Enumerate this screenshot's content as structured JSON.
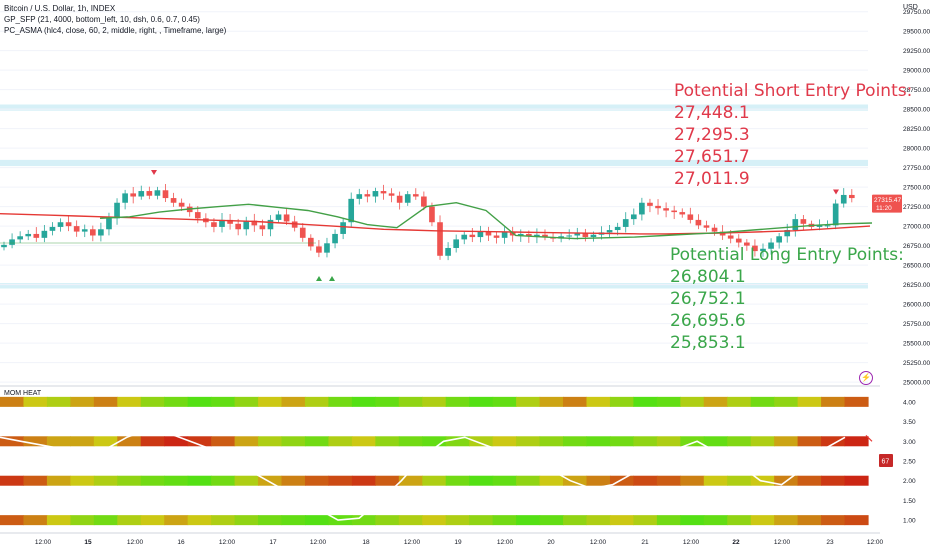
{
  "header": {
    "line1": "Bitcoin / U.S. Dollar, 1h, INDEX",
    "line2": "GP_SFP (21, 4000, bottom_left, 10, dsh, 0.6, 0.7, 0.45)",
    "line3": "PC_ASMA (hlc4, close, 60, 2, middle, right, , Timeframe, large)"
  },
  "axis_currency": "USD",
  "annotations": {
    "short_title": "Potential Short Entry Points:",
    "short_values": [
      "27,448.1",
      "27,295.3",
      "27,651.7",
      "27,011.9"
    ],
    "long_title": "Potential Long Entry Points:",
    "long_values": [
      "26,804.1",
      "26,752.1",
      "26,695.6",
      "25,853.1"
    ]
  },
  "price_tags": {
    "last": "27315.47",
    "countdown": "11:20"
  },
  "momentum": {
    "label": "MOM HEAT",
    "badge": "67"
  },
  "icons": [
    "bolt-icon",
    "triangle-down-icon",
    "triangle-up-icon"
  ],
  "colors": {
    "up": "#26a69a",
    "down": "#ef5350",
    "asma": "#e53935",
    "sfp": "#43a047",
    "zone": "#d6f0f7"
  },
  "chart_data": [
    {
      "type": "candlestick",
      "title": "Bitcoin / U.S. Dollar, 1h, INDEX",
      "y_ticks": [
        29750,
        29500,
        29250,
        29000,
        28750,
        28500,
        28250,
        28000,
        27750,
        27500,
        27250,
        27000,
        26750,
        26500,
        26250,
        26000,
        25750,
        25500,
        25250,
        25000
      ],
      "x_tick_labels": [
        "12:00",
        "15",
        "12:00",
        "16",
        "12:00",
        "17",
        "12:00",
        "18",
        "12:00",
        "19",
        "12:00",
        "20",
        "12:00",
        "21",
        "12:00",
        "22",
        "12:00",
        "23",
        "12:00"
      ],
      "x_bold": [
        "15",
        "22"
      ],
      "ylim": [
        24950,
        29900
      ],
      "closes": [
        26760,
        26830,
        26870,
        26900,
        26850,
        26940,
        26990,
        27050,
        27000,
        26930,
        26960,
        26880,
        26960,
        27100,
        27300,
        27420,
        27380,
        27450,
        27390,
        27460,
        27360,
        27300,
        27250,
        27180,
        27100,
        27050,
        26990,
        27080,
        27030,
        26960,
        27070,
        27010,
        26960,
        27080,
        27150,
        27060,
        26980,
        26850,
        26740,
        26660,
        26780,
        26900,
        27050,
        27350,
        27410,
        27380,
        27450,
        27420,
        27390,
        27300,
        27410,
        27380,
        27250,
        27050,
        26620,
        26720,
        26830,
        26890,
        26860,
        26930,
        26880,
        26850,
        26920,
        26880,
        26900,
        26870,
        26890,
        26860,
        26840,
        26870,
        26880,
        26910,
        26860,
        26890,
        26920,
        26950,
        26990,
        27090,
        27150,
        27300,
        27260,
        27230,
        27200,
        27180,
        27150,
        27080,
        27010,
        26980,
        26930,
        26880,
        26840,
        26790,
        26750,
        26680,
        26710,
        26790,
        26870,
        26950,
        27090,
        27030,
        26990,
        27010,
        27010,
        27290,
        27400,
        27360
      ],
      "asma": [
        27160,
        27150,
        27140,
        27130,
        27120,
        27110,
        27100,
        27090,
        27080,
        27070,
        27060,
        27040,
        27020,
        27000,
        26980,
        26960,
        26950,
        26940,
        26935,
        26930,
        26925,
        26920,
        26915,
        26910,
        26905,
        26900,
        26900,
        26905,
        26910,
        26920,
        26930,
        26940,
        26960,
        26980,
        27000
      ],
      "sfp_line": [
        27100,
        27120,
        27180,
        27220,
        27250,
        27280,
        27240,
        27200,
        27120,
        27020,
        26980,
        27250,
        27300,
        27200,
        26880,
        26860,
        26840,
        26850,
        26860,
        26880,
        26900,
        26920,
        26950,
        26980,
        27010,
        27030,
        27040
      ],
      "resistance_zones": [
        [
          28480,
          28560
        ],
        [
          27770,
          27850
        ]
      ],
      "support_zones": [
        [
          26200,
          26270
        ]
      ],
      "markers": {
        "down": [
          "top-left",
          "top-right"
        ],
        "up": [
          "bottom-left-pair"
        ]
      }
    },
    {
      "type": "heatmap",
      "title": "MOM HEAT",
      "y_ticks": [
        4.0,
        3.5,
        3.0,
        2.5,
        2.0,
        1.5,
        1.0
      ],
      "rows": [
        {
          "level": 4.0,
          "values": [
            0.3,
            0.5,
            0.6,
            0.4,
            0.3,
            0.5,
            0.7,
            0.8,
            0.9,
            0.85,
            0.7,
            0.5,
            0.4,
            0.6,
            0.8,
            0.9,
            0.85,
            0.7,
            0.6,
            0.8,
            0.9,
            0.85,
            0.6,
            0.4,
            0.3,
            0.5,
            0.7,
            0.9,
            0.85,
            0.6,
            0.4,
            0.6,
            0.8,
            0.7,
            0.5,
            0.3,
            0.2
          ]
        },
        {
          "level": 3.0,
          "values": [
            0.2,
            0.3,
            0.4,
            0.4,
            0.5,
            0.3,
            0.1,
            0.05,
            0.1,
            0.2,
            0.4,
            0.6,
            0.7,
            0.8,
            0.6,
            0.5,
            0.7,
            0.8,
            0.85,
            0.75,
            0.6,
            0.5,
            0.6,
            0.7,
            0.8,
            0.85,
            0.8,
            0.7,
            0.6,
            0.8,
            0.85,
            0.75,
            0.6,
            0.4,
            0.2,
            0.1,
            0.05
          ]
        },
        {
          "level": 2.0,
          "values": [
            0.1,
            0.2,
            0.4,
            0.5,
            0.6,
            0.7,
            0.8,
            0.85,
            0.9,
            0.8,
            0.6,
            0.4,
            0.3,
            0.2,
            0.15,
            0.1,
            0.2,
            0.4,
            0.6,
            0.8,
            0.9,
            0.85,
            0.7,
            0.5,
            0.4,
            0.3,
            0.2,
            0.15,
            0.2,
            0.3,
            0.5,
            0.6,
            0.5,
            0.3,
            0.2,
            0.1,
            0.05
          ]
        },
        {
          "level": 1.0,
          "values": [
            0.2,
            0.3,
            0.5,
            0.7,
            0.8,
            0.6,
            0.5,
            0.4,
            0.5,
            0.6,
            0.7,
            0.8,
            0.85,
            0.9,
            0.85,
            0.8,
            0.7,
            0.6,
            0.5,
            0.6,
            0.7,
            0.8,
            0.9,
            0.85,
            0.7,
            0.6,
            0.5,
            0.6,
            0.8,
            0.9,
            0.85,
            0.7,
            0.5,
            0.4,
            0.3,
            0.2,
            0.15
          ]
        }
      ],
      "momentum_line": [
        3.1,
        3.0,
        2.9,
        2.8,
        2.7,
        2.8,
        3.1,
        3.3,
        3.2,
        3.0,
        2.8,
        2.5,
        2.2,
        1.9,
        1.6,
        1.3,
        1.0,
        1.05,
        1.5,
        2.0,
        2.6,
        3.0,
        3.1,
        2.9,
        2.7,
        2.5,
        2.3,
        2.0,
        1.8,
        1.9,
        2.2,
        2.6,
        2.8,
        3.0,
        2.7,
        2.4,
        2.0,
        1.9,
        2.3,
        2.8,
        3.1
      ],
      "momentum_level": 67
    }
  ]
}
